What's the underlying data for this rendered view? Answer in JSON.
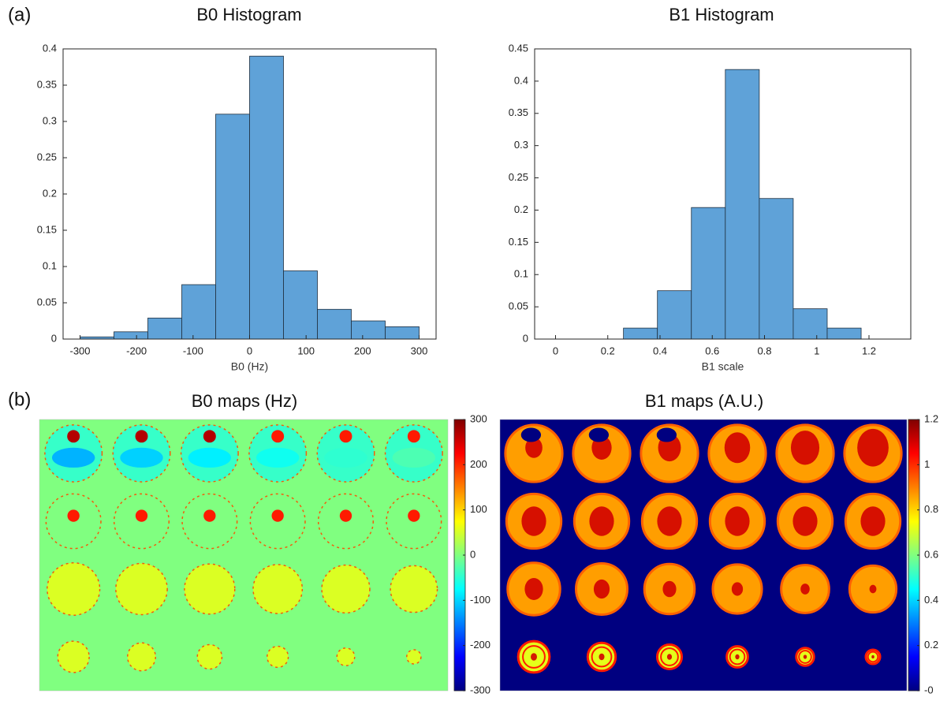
{
  "panel_labels": [
    "(a)",
    "(b)"
  ],
  "chart_data": [
    {
      "type": "histogram",
      "title": "B0 Histogram",
      "xlabel": "B0 (Hz)",
      "bins": [
        -300,
        -240,
        -180,
        -120,
        -60,
        0,
        60,
        120,
        180,
        240,
        300
      ],
      "values": [
        0.003,
        0.01,
        0.029,
        0.075,
        0.31,
        0.39,
        0.094,
        0.041,
        0.025,
        0.017
      ],
      "color": "#5fa2d8",
      "xlim": [
        -330,
        330
      ],
      "xticks": [
        -300,
        -200,
        -100,
        0,
        100,
        200,
        300
      ],
      "ylim": [
        0,
        0.4
      ],
      "yticks": [
        0,
        0.05,
        0.1,
        0.15,
        0.2,
        0.25,
        0.3,
        0.35,
        0.4
      ]
    },
    {
      "type": "histogram",
      "title": "B1 Histogram",
      "xlabel": "B1 scale",
      "bins": [
        0.26,
        0.39,
        0.52,
        0.65,
        0.78,
        0.91,
        1.04,
        1.17
      ],
      "values": [
        0.017,
        0.075,
        0.204,
        0.418,
        0.218,
        0.047,
        0.017
      ],
      "color": "#5fa2d8",
      "xlim": [
        -0.08,
        1.36
      ],
      "xticks": [
        0,
        0.2,
        0.4,
        0.6,
        0.8,
        1,
        1.2
      ],
      "ylim": [
        0,
        0.45
      ],
      "yticks": [
        0,
        0.05,
        0.1,
        0.15,
        0.2,
        0.25,
        0.3,
        0.35,
        0.4,
        0.45
      ]
    },
    {
      "type": "heatmap",
      "title": "B0 maps (Hz)",
      "colormap": "jet",
      "clim": [
        -300,
        300
      ],
      "colorbar_ticks": [
        -300,
        -200,
        -100,
        0,
        100,
        200,
        300
      ]
    },
    {
      "type": "heatmap",
      "title": "B1 maps (A.U.)",
      "colormap": "jet",
      "clim": [
        0,
        1.2
      ],
      "colorbar_ticks": [
        {
          "value": 0,
          "label": "-0"
        },
        0.2,
        0.4,
        0.6,
        0.8,
        1,
        1.2
      ]
    }
  ]
}
